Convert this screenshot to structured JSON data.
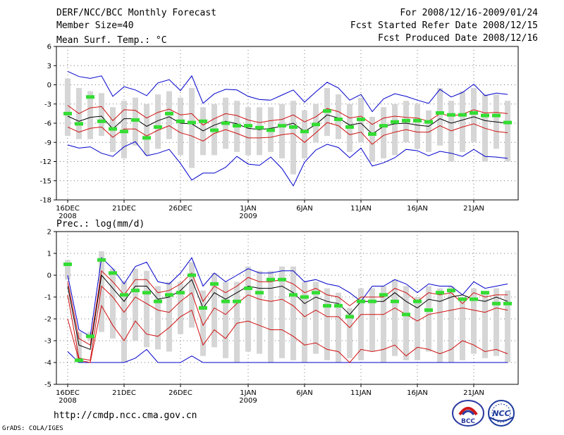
{
  "header": {
    "title": "DERF/NCC/BCC Monthly Forecast",
    "member_size": "Member Size=40",
    "forecast_period": "For 2008/12/16-2009/01/24",
    "started_refer": "Fcst Started Refer Date 2008/12/15",
    "produced": "Fcst Produced Date 2008/12/16"
  },
  "footer": {
    "url": "http://cmdp.ncc.cma.gov.cn",
    "credit": "GrADS: COLA/IGES",
    "logo_bcc": "BCC",
    "logo_ncc": "NCC"
  },
  "colors": {
    "mean": "#000000",
    "spread": "#d01010",
    "extreme": "#0000cc",
    "bar": "#d6d6d6",
    "member_mark": "#33dd33"
  },
  "chart_data": [
    {
      "type": "line",
      "title": "Mean Surf. Temp.: °C",
      "x_tick_labels": [
        "16DEC",
        "21DEC",
        "26DEC",
        "1JAN",
        "6JAN",
        "11JAN",
        "16JAN",
        "21JAN"
      ],
      "x_tick_sublabels": [
        "2008",
        "",
        "",
        "2009",
        "",
        "",
        "",
        ""
      ],
      "x_tick_days": [
        1,
        6,
        11,
        17,
        22,
        27,
        32,
        37
      ],
      "days": 40,
      "ylim": [
        -18,
        6
      ],
      "yticks": [
        6,
        3,
        0,
        -3,
        -6,
        -9,
        -12,
        -15,
        -18
      ],
      "series": [
        {
          "name": "max",
          "values": [
            2.1,
            1.3,
            1.0,
            1.4,
            -1.8,
            -0.3,
            -0.8,
            -1.7,
            0.3,
            0.8,
            -0.9,
            1.4,
            -2.9,
            -1.4,
            -0.7,
            -0.8,
            -1.8,
            -2.3,
            -2.4,
            -1.6,
            -0.8,
            -2.7,
            -1.1,
            0.4,
            -0.5,
            -2.4,
            -1.5,
            -4.2,
            -2.2,
            -1.4,
            -1.8,
            -2.4,
            -2.9,
            -0.7,
            -1.9,
            -1.2,
            0.1,
            -1.7,
            -1.3,
            -1.5
          ]
        },
        {
          "name": "upper",
          "values": [
            -3.2,
            -4.5,
            -3.6,
            -3.4,
            -5.6,
            -3.9,
            -4.0,
            -5.2,
            -4.3,
            -3.8,
            -4.7,
            -4.5,
            -6.3,
            -5.3,
            -4.5,
            -4.8,
            -5.5,
            -5.9,
            -5.6,
            -5.4,
            -4.7,
            -5.8,
            -5.0,
            -3.7,
            -4.2,
            -5.2,
            -4.9,
            -6.2,
            -5.2,
            -4.9,
            -5.1,
            -5.2,
            -5.7,
            -4.5,
            -4.9,
            -4.6,
            -3.9,
            -4.4,
            -4.3,
            -4.5
          ]
        },
        {
          "name": "mean",
          "values": [
            -4.9,
            -5.7,
            -5.1,
            -4.9,
            -6.9,
            -5.3,
            -5.3,
            -6.5,
            -5.6,
            -5.0,
            -6.0,
            -6.1,
            -7.2,
            -6.3,
            -5.7,
            -6.1,
            -6.8,
            -7.0,
            -6.8,
            -6.5,
            -6.0,
            -7.3,
            -6.2,
            -4.7,
            -5.2,
            -6.3,
            -6.0,
            -7.7,
            -6.5,
            -6.1,
            -6.0,
            -6.3,
            -6.5,
            -5.3,
            -6.0,
            -5.5,
            -5.0,
            -5.6,
            -5.8,
            -6.0
          ]
        },
        {
          "name": "lower",
          "values": [
            -6.6,
            -7.4,
            -6.8,
            -6.6,
            -8.2,
            -6.9,
            -6.9,
            -8.0,
            -7.1,
            -6.4,
            -7.5,
            -8.0,
            -8.8,
            -7.6,
            -7.0,
            -7.6,
            -8.3,
            -8.3,
            -8.2,
            -7.8,
            -7.6,
            -9.0,
            -7.5,
            -5.9,
            -6.4,
            -7.8,
            -7.4,
            -9.3,
            -7.9,
            -7.4,
            -7.0,
            -7.4,
            -7.4,
            -6.4,
            -7.2,
            -6.6,
            -6.1,
            -6.8,
            -7.3,
            -7.5
          ]
        },
        {
          "name": "min",
          "values": [
            -9.4,
            -9.9,
            -9.7,
            -10.7,
            -11.2,
            -9.7,
            -8.9,
            -11.1,
            -10.7,
            -10.1,
            -12.3,
            -14.9,
            -13.8,
            -13.8,
            -12.9,
            -11.2,
            -12.4,
            -12.6,
            -11.3,
            -13.1,
            -15.8,
            -12.1,
            -10.2,
            -9.3,
            -9.8,
            -11.4,
            -9.9,
            -12.7,
            -12.2,
            -11.4,
            -10.1,
            -10.3,
            -11.1,
            -10.4,
            -10.7,
            -11.2,
            -10.1,
            -11.2,
            -11.3,
            -11.5
          ]
        },
        {
          "name": "member_mark",
          "values": [
            -4.5,
            -6.1,
            -1.9,
            -5.7,
            -6.9,
            -7.3,
            -5.5,
            -8.3,
            -6.6,
            -4.5,
            -5.7,
            -5.9,
            -5.7,
            -7.1,
            -6.0,
            -6.4,
            -6.4,
            -6.7,
            -7.1,
            -6.4,
            -6.6,
            -7.3,
            -6.2,
            -4.1,
            -5.4,
            -6.6,
            -5.4,
            -7.7,
            -6.4,
            -5.8,
            -5.6,
            -5.6,
            -5.8,
            -4.4,
            -4.7,
            -4.7,
            -4.4,
            -4.8,
            -4.8,
            -5.9
          ]
        },
        {
          "name": "bar_top",
          "values": [
            1.0,
            -0.5,
            -1.0,
            -1.3,
            -3.5,
            -2.5,
            -2.0,
            -3.0,
            -1.5,
            -1.0,
            -2.0,
            -0.5,
            -3.5,
            -3.0,
            -2.0,
            -2.5,
            -3.5,
            -3.5,
            -3.5,
            -3.0,
            -2.5,
            -4.0,
            -3.0,
            -0.5,
            -1.5,
            -3.0,
            -2.0,
            -5.0,
            -3.5,
            -3.0,
            -2.5,
            -3.0,
            -4.0,
            -0.5,
            -2.5,
            -1.0,
            -0.5,
            -1.5,
            -1.5,
            -2.5
          ]
        },
        {
          "name": "bar_bottom",
          "values": [
            -8.0,
            -8.5,
            -8.5,
            -8.0,
            -10.5,
            -11.5,
            -9.5,
            -11.0,
            -10.0,
            -8.5,
            -11.0,
            -13.0,
            -11.0,
            -11.0,
            -10.0,
            -10.5,
            -11.0,
            -11.0,
            -10.5,
            -11.5,
            -14.0,
            -11.5,
            -9.0,
            -8.0,
            -8.5,
            -10.5,
            -9.0,
            -12.0,
            -11.5,
            -11.0,
            -9.0,
            -10.0,
            -10.5,
            -9.5,
            -12.0,
            -10.5,
            -9.0,
            -12.0,
            -10.0,
            -12.0
          ]
        }
      ]
    },
    {
      "type": "line",
      "title": "Prec.: log(mm/d)",
      "x_tick_labels": [
        "16DEC",
        "21DEC",
        "26DEC",
        "1JAN",
        "6JAN",
        "11JAN",
        "16JAN",
        "21JAN"
      ],
      "x_tick_sublabels": [
        "2008",
        "",
        "",
        "2009",
        "",
        "",
        "",
        ""
      ],
      "x_tick_days": [
        1,
        6,
        11,
        17,
        22,
        27,
        32,
        37
      ],
      "days": 40,
      "ylim": [
        -5,
        2
      ],
      "yticks": [
        2,
        1,
        0,
        -1,
        -2,
        -3,
        -4,
        -5
      ],
      "series": [
        {
          "name": "max",
          "values": [
            0.0,
            -2.5,
            -2.8,
            0.8,
            0.3,
            -0.4,
            0.4,
            0.6,
            -0.3,
            -0.4,
            0.1,
            0.8,
            -0.5,
            0.1,
            -0.3,
            0.0,
            0.3,
            0.1,
            0.1,
            0.2,
            0.2,
            -0.3,
            -0.2,
            -0.4,
            -0.5,
            -0.8,
            -1.2,
            -0.5,
            -0.5,
            -0.2,
            -0.4,
            -0.8,
            -0.4,
            -0.5,
            -0.5,
            -0.9,
            -0.3,
            -0.6,
            -0.5,
            -0.4
          ]
        },
        {
          "name": "upper",
          "values": [
            -0.3,
            -2.9,
            -3.2,
            0.2,
            -0.3,
            -0.9,
            -0.2,
            -0.2,
            -0.8,
            -0.7,
            -0.4,
            0.1,
            -1.2,
            -0.5,
            -0.8,
            -0.5,
            -0.1,
            -0.3,
            -0.3,
            -0.2,
            -0.4,
            -0.8,
            -0.6,
            -0.9,
            -1.0,
            -1.4,
            -1.0,
            -1.0,
            -1.0,
            -0.6,
            -0.8,
            -1.2,
            -0.8,
            -0.9,
            -0.8,
            -1.3,
            -0.8,
            -1.0,
            -0.9,
            -0.9
          ]
        },
        {
          "name": "mean",
          "values": [
            -0.5,
            -3.2,
            -3.4,
            0.0,
            -0.6,
            -1.2,
            -0.5,
            -0.5,
            -1.1,
            -1.0,
            -0.7,
            -0.2,
            -1.5,
            -0.8,
            -1.1,
            -0.8,
            -0.5,
            -0.6,
            -0.6,
            -0.5,
            -0.8,
            -1.3,
            -1.0,
            -1.2,
            -1.3,
            -1.8,
            -1.2,
            -1.2,
            -1.2,
            -0.8,
            -1.2,
            -1.5,
            -1.1,
            -1.2,
            -1.0,
            -0.9,
            -1.1,
            -1.2,
            -1.0,
            -1.2
          ]
        },
        {
          "name": "lower",
          "values": [
            -0.9,
            -3.8,
            -3.9,
            -0.5,
            -1.0,
            -1.7,
            -1.0,
            -1.3,
            -1.6,
            -1.7,
            -1.2,
            -0.8,
            -2.3,
            -1.5,
            -1.8,
            -1.3,
            -0.9,
            -1.1,
            -1.2,
            -1.1,
            -1.4,
            -1.9,
            -1.6,
            -1.9,
            -1.9,
            -2.4,
            -1.8,
            -1.8,
            -1.8,
            -1.5,
            -1.8,
            -2.1,
            -1.8,
            -1.7,
            -1.6,
            -1.5,
            -1.6,
            -1.7,
            -1.5,
            -1.6
          ]
        },
        {
          "name": "lower2",
          "values": [
            -2.0,
            -3.9,
            -4.0,
            -1.4,
            -2.3,
            -3.0,
            -2.1,
            -2.7,
            -2.8,
            -2.4,
            -1.9,
            -1.6,
            -3.2,
            -2.5,
            -2.9,
            -2.2,
            -2.1,
            -2.3,
            -2.5,
            -2.5,
            -2.8,
            -3.2,
            -3.1,
            -3.4,
            -3.5,
            -4.0,
            -3.4,
            -3.5,
            -3.4,
            -3.2,
            -3.7,
            -3.3,
            -3.4,
            -3.6,
            -3.4,
            -3.0,
            -3.2,
            -3.5,
            -3.4,
            -3.6
          ]
        },
        {
          "name": "min",
          "values": [
            -3.5,
            -4.0,
            -4.0,
            -4.0,
            -4.0,
            -4.0,
            -3.8,
            -3.4,
            -4.0,
            -4.0,
            -4.0,
            -3.7,
            -4.0,
            -4.0,
            -4.0,
            -4.0,
            -4.0,
            -4.0,
            -4.0,
            -4.0,
            -4.0,
            -4.0,
            -4.0,
            -4.0,
            -4.0,
            -4.0,
            -4.0,
            -4.0,
            -4.0,
            -4.0,
            -4.0,
            -4.0,
            -4.0,
            -4.0,
            -4.0,
            -4.0,
            -4.0,
            -4.0,
            -4.0,
            -4.0
          ]
        },
        {
          "name": "member_mark",
          "values": [
            0.5,
            -3.9,
            -2.8,
            0.7,
            0.1,
            -0.9,
            -0.7,
            -0.8,
            -1.2,
            -0.9,
            -0.8,
            0.0,
            -1.5,
            -0.4,
            -1.2,
            -1.2,
            -0.6,
            -0.8,
            -0.2,
            -0.2,
            -0.9,
            -1.0,
            -0.8,
            -1.4,
            -1.4,
            -1.9,
            -1.2,
            -1.2,
            -0.9,
            -1.2,
            -1.8,
            -1.2,
            -1.6,
            -0.8,
            -0.7,
            -1.1,
            -1.1,
            -0.8,
            -1.3,
            -1.3
          ]
        },
        {
          "name": "bar_top",
          "values": [
            0.7,
            -2.6,
            -2.6,
            1.1,
            0.3,
            -0.3,
            0.3,
            0.2,
            -0.5,
            -0.3,
            -0.3,
            0.6,
            -0.7,
            0.1,
            -0.3,
            -0.3,
            0.4,
            0.2,
            0.2,
            0.4,
            0.4,
            -0.3,
            -0.3,
            -0.6,
            -0.8,
            -1.5,
            -0.6,
            -0.6,
            -0.5,
            -0.2,
            -0.5,
            -1.0,
            -0.5,
            -0.6,
            -0.5,
            -1.0,
            -0.6,
            -0.8,
            -0.6,
            -0.7
          ]
        },
        {
          "name": "bar_bottom",
          "values": [
            -0.2,
            -3.9,
            -3.0,
            -2.6,
            -2.9,
            -4.0,
            -3.0,
            -3.3,
            -3.4,
            -3.5,
            -2.7,
            -2.4,
            -3.7,
            -3.3,
            -3.8,
            -4.0,
            -3.5,
            -3.6,
            -4.0,
            -3.8,
            -3.9,
            -4.0,
            -3.6,
            -3.9,
            -4.0,
            -3.8,
            -3.9,
            -3.5,
            -4.0,
            -3.7,
            -3.9,
            -3.9,
            -3.5,
            -4.0,
            -4.0,
            -3.9,
            -3.6,
            -3.8,
            -3.7,
            -4.0
          ]
        }
      ]
    }
  ]
}
